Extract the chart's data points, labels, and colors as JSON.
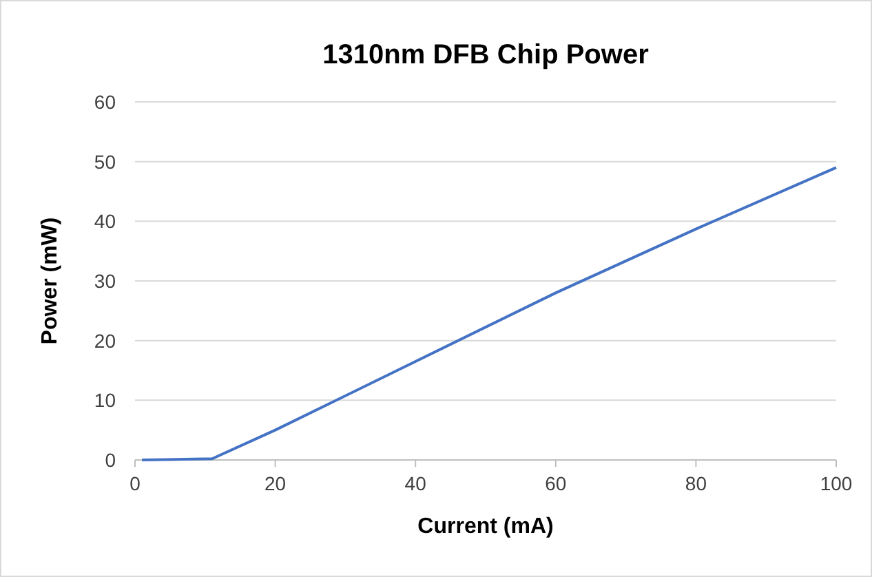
{
  "chart_data": {
    "type": "line",
    "title": "1310nm DFB Chip Power",
    "xlabel": "Current (mA)",
    "ylabel": "Power (mW)",
    "x": [
      1,
      11,
      20,
      40,
      60,
      80,
      100
    ],
    "series": [
      {
        "color": "#4472c4",
        "values": [
          0,
          0.2,
          5,
          16.5,
          28,
          38.7,
          49
        ]
      }
    ],
    "xlim": [
      0,
      100
    ],
    "xticks": [
      0,
      20,
      40,
      60,
      80,
      100
    ],
    "ylim": [
      0,
      60
    ],
    "yticks": [
      0,
      10,
      20,
      30,
      40,
      50,
      60
    ],
    "grid": "y",
    "marker": "none",
    "line_style": "solid"
  }
}
